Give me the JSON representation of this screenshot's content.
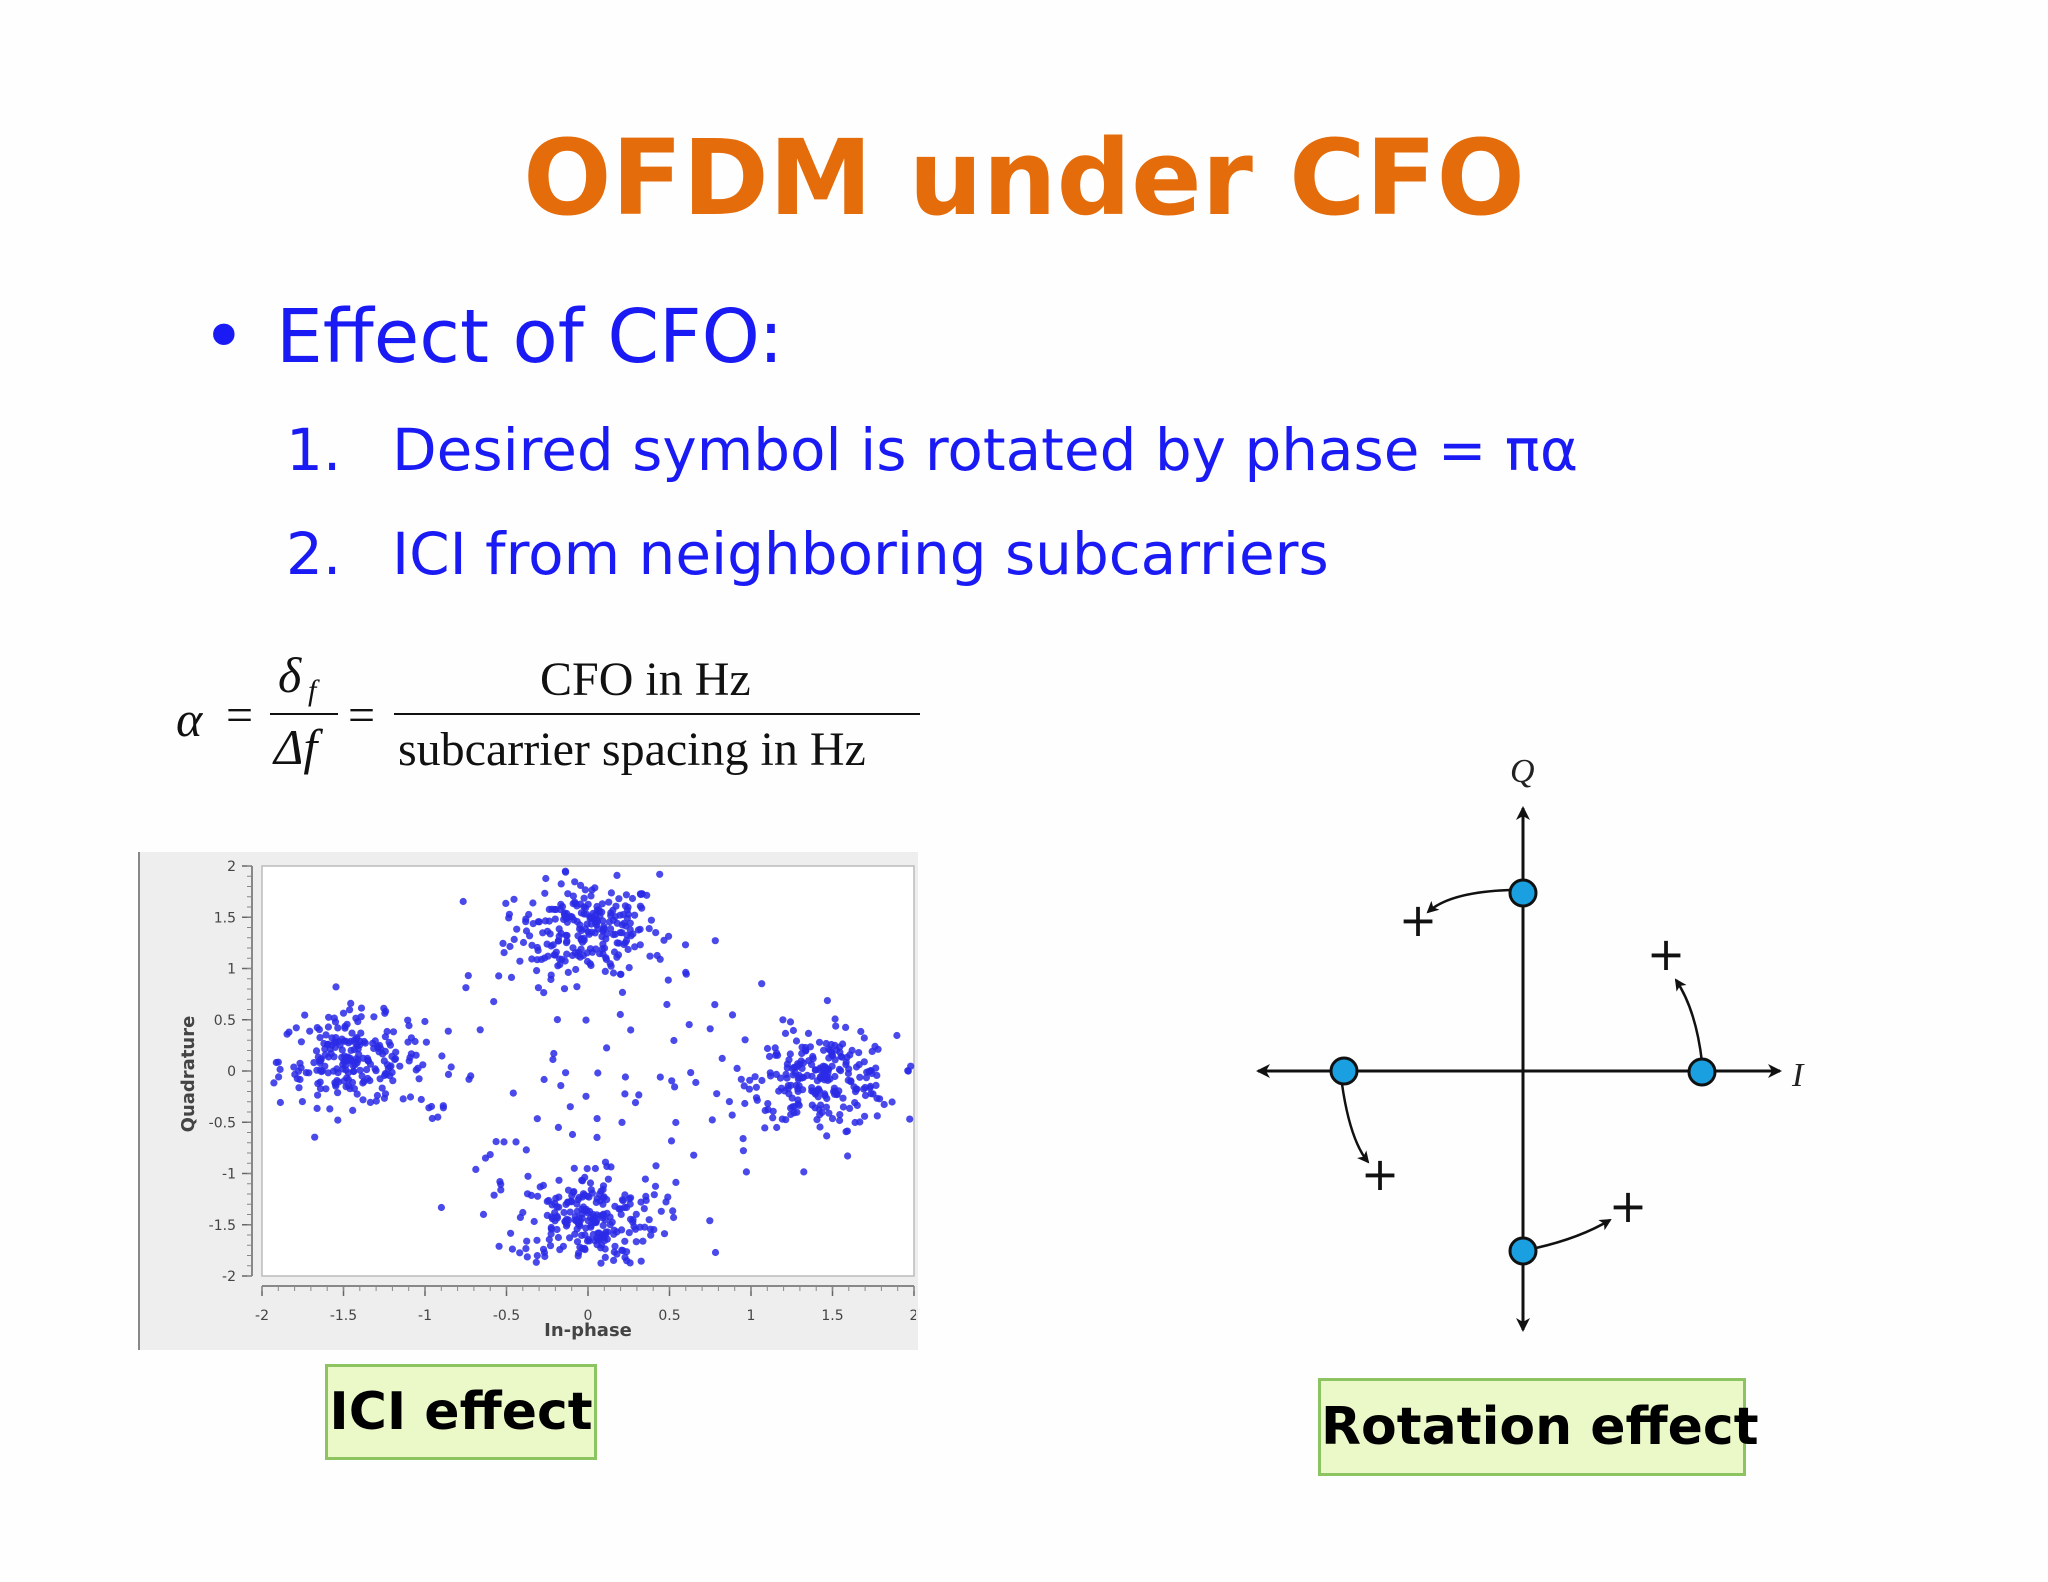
{
  "slide": {
    "title": "OFDM under CFO",
    "bullet": {
      "symbol": "•",
      "text": "Effect of CFO:"
    },
    "items": [
      {
        "num": "1.",
        "text": "Desired symbol is rotated by phase = πα"
      },
      {
        "num": "2.",
        "text": "ICI from neighboring subcarriers"
      }
    ]
  },
  "formula": {
    "alpha": "α",
    "equals": "=",
    "frac1_num": "δ",
    "frac1_num_sub": "f",
    "frac1_den": "Δf",
    "frac2_num": "CFO in Hz",
    "frac2_den": "subcarrier spacing in Hz"
  },
  "chart_data": {
    "type": "scatter",
    "xlabel": "In-phase",
    "ylabel": "Quadrature",
    "xlim": [
      -2,
      2
    ],
    "ylim": [
      -2,
      2
    ],
    "x_ticks": [
      "-2",
      "-1.5",
      "-1",
      "-0.5",
      "0",
      "0.5",
      "1",
      "1.5",
      "2"
    ],
    "y_ticks": [
      "2",
      "1.5",
      "1",
      "0.5",
      "0",
      "-0.5",
      "-1",
      "-1.5",
      "-2"
    ],
    "grid": false,
    "point_color": "#2a2ae6",
    "clusters": [
      {
        "center": [
          0,
          1.4
        ],
        "spread": 0.22,
        "points": 200
      },
      {
        "center": [
          -1.45,
          0.1
        ],
        "spread": 0.22,
        "points": 200
      },
      {
        "center": [
          1.45,
          -0.1
        ],
        "spread": 0.22,
        "points": 200
      },
      {
        "center": [
          0,
          -1.45
        ],
        "spread": 0.22,
        "points": 200
      }
    ],
    "scattered_points": 220
  },
  "diagram": {
    "q_label": "Q",
    "i_label": "I",
    "point_color": "#1aa0e0",
    "marker": "+"
  },
  "captions": {
    "ici": "ICI effect",
    "rotation": "Rotation effect"
  },
  "colors": {
    "title": "#e46c0a",
    "body_text": "#1a1af5",
    "caption_fill": "#ebf8c8",
    "caption_border": "#8dc462"
  }
}
